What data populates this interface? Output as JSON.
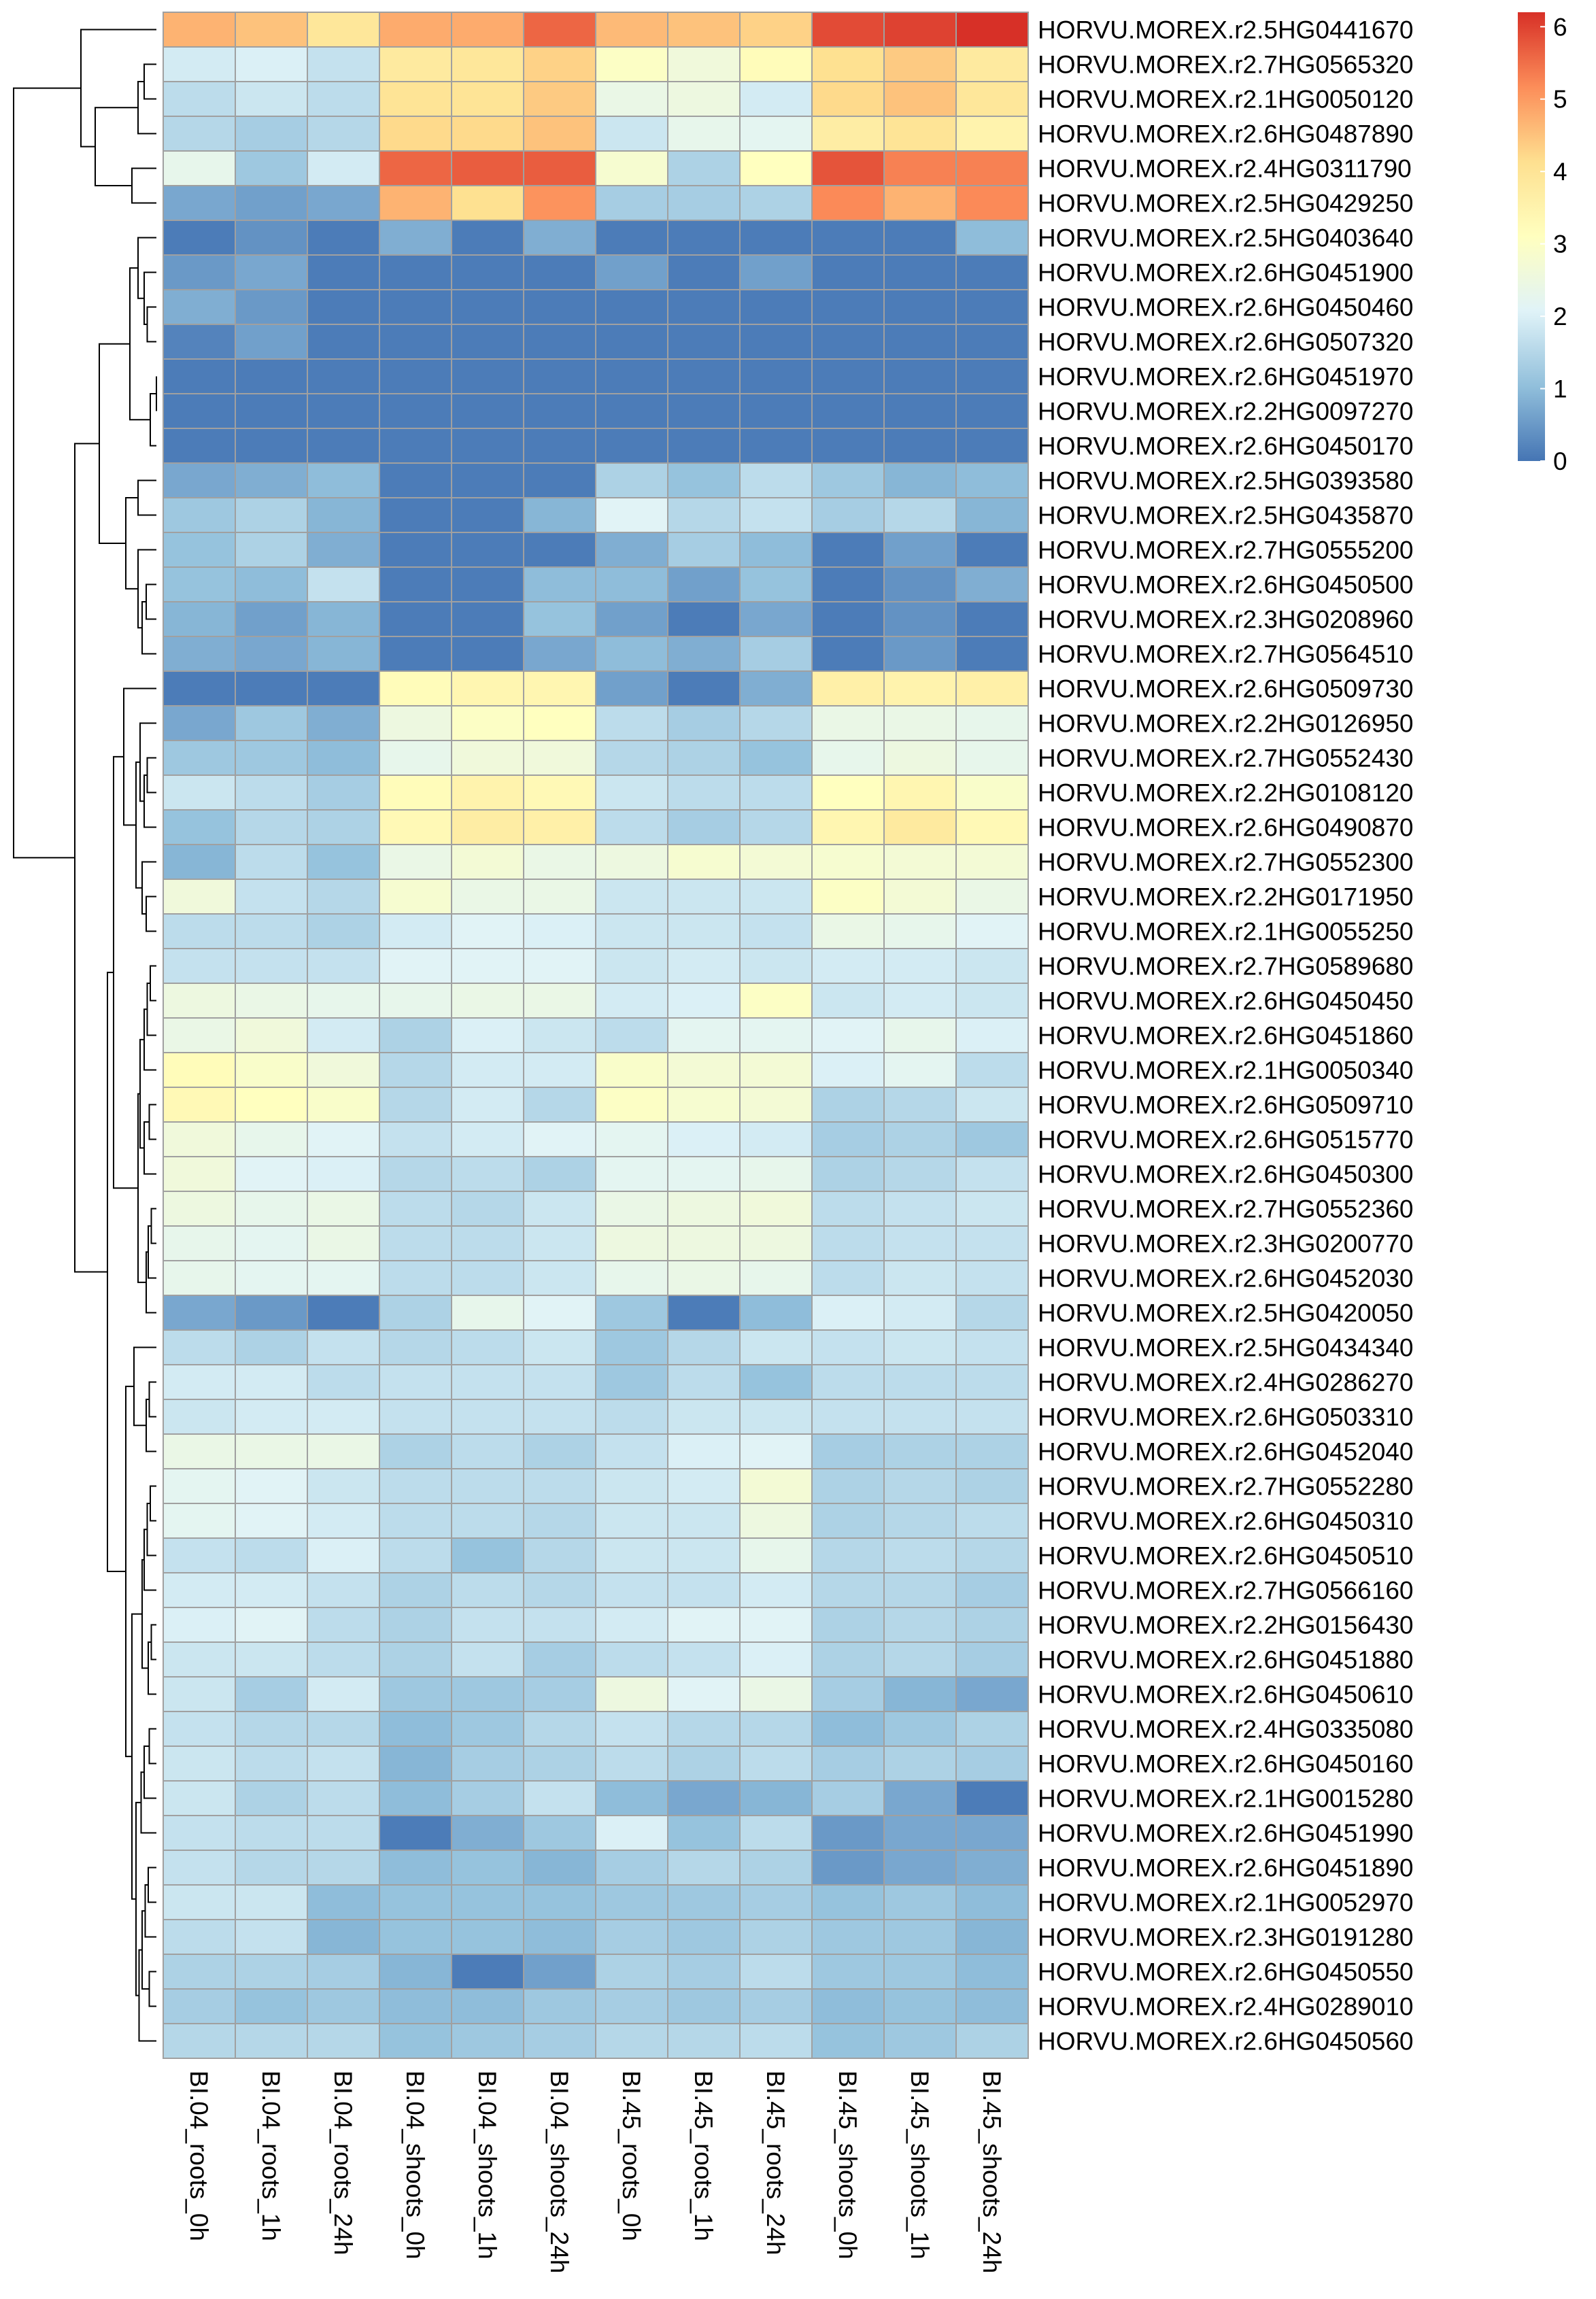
{
  "chart_data": {
    "type": "heatmap",
    "title": "",
    "xlabel": "",
    "ylabel": "",
    "columns": [
      "BI.04_roots_0h",
      "BI.04_roots_1h",
      "BI.04_roots_24h",
      "BI.04_shoots_0h",
      "BI.04_shoots_1h",
      "BI.04_shoots_24h",
      "BI.45_roots_0h",
      "BI.45_roots_1h",
      "BI.45_roots_24h",
      "BI.45_shoots_0h",
      "BI.45_shoots_1h",
      "BI.45_shoots_24h"
    ],
    "rows": [
      "HORVU.MOREX.r2.5HG0441670",
      "HORVU.MOREX.r2.7HG0565320",
      "HORVU.MOREX.r2.1HG0050120",
      "HORVU.MOREX.r2.6HG0487890",
      "HORVU.MOREX.r2.4HG0311790",
      "HORVU.MOREX.r2.5HG0429250",
      "HORVU.MOREX.r2.5HG0403640",
      "HORVU.MOREX.r2.6HG0451900",
      "HORVU.MOREX.r2.6HG0450460",
      "HORVU.MOREX.r2.6HG0507320",
      "HORVU.MOREX.r2.6HG0451970",
      "HORVU.MOREX.r2.2HG0097270",
      "HORVU.MOREX.r2.6HG0450170",
      "HORVU.MOREX.r2.5HG0393580",
      "HORVU.MOREX.r2.5HG0435870",
      "HORVU.MOREX.r2.7HG0555200",
      "HORVU.MOREX.r2.6HG0450500",
      "HORVU.MOREX.r2.3HG0208960",
      "HORVU.MOREX.r2.7HG0564510",
      "HORVU.MOREX.r2.6HG0509730",
      "HORVU.MOREX.r2.2HG0126950",
      "HORVU.MOREX.r2.7HG0552430",
      "HORVU.MOREX.r2.2HG0108120",
      "HORVU.MOREX.r2.6HG0490870",
      "HORVU.MOREX.r2.7HG0552300",
      "HORVU.MOREX.r2.2HG0171950",
      "HORVU.MOREX.r2.1HG0055250",
      "HORVU.MOREX.r2.7HG0589680",
      "HORVU.MOREX.r2.6HG0450450",
      "HORVU.MOREX.r2.6HG0451860",
      "HORVU.MOREX.r2.1HG0050340",
      "HORVU.MOREX.r2.6HG0509710",
      "HORVU.MOREX.r2.6HG0515770",
      "HORVU.MOREX.r2.6HG0450300",
      "HORVU.MOREX.r2.7HG0552360",
      "HORVU.MOREX.r2.3HG0200770",
      "HORVU.MOREX.r2.6HG0452030",
      "HORVU.MOREX.r2.5HG0420050",
      "HORVU.MOREX.r2.5HG0434340",
      "HORVU.MOREX.r2.4HG0286270",
      "HORVU.MOREX.r2.6HG0503310",
      "HORVU.MOREX.r2.6HG0452040",
      "HORVU.MOREX.r2.7HG0552280",
      "HORVU.MOREX.r2.6HG0450310",
      "HORVU.MOREX.r2.6HG0450510",
      "HORVU.MOREX.r2.7HG0566160",
      "HORVU.MOREX.r2.2HG0156430",
      "HORVU.MOREX.r2.6HG0451880",
      "HORVU.MOREX.r2.6HG0450610",
      "HORVU.MOREX.r2.4HG0335080",
      "HORVU.MOREX.r2.6HG0450160",
      "HORVU.MOREX.r2.1HG0015280",
      "HORVU.MOREX.r2.6HG0451990",
      "HORVU.MOREX.r2.6HG0451890",
      "HORVU.MOREX.r2.1HG0052970",
      "HORVU.MOREX.r2.3HG0191280",
      "HORVU.MOREX.r2.6HG0450550",
      "HORVU.MOREX.r2.4HG0289010",
      "HORVU.MOREX.r2.6HG0450560"
    ],
    "values": [
      [
        4.7,
        4.5,
        3.9,
        4.8,
        4.8,
        5.6,
        4.6,
        4.5,
        4.3,
        5.9,
        6.0,
        6.2
      ],
      [
        1.9,
        2.0,
        1.7,
        3.8,
        3.9,
        4.3,
        3.0,
        2.6,
        3.2,
        4.1,
        4.4,
        3.8
      ],
      [
        1.6,
        1.8,
        1.6,
        4.0,
        4.0,
        4.4,
        2.4,
        2.5,
        1.9,
        4.2,
        4.5,
        3.9
      ],
      [
        1.5,
        1.3,
        1.5,
        4.2,
        4.2,
        4.5,
        1.8,
        2.3,
        2.2,
        3.7,
        4.0,
        3.5
      ],
      [
        2.3,
        1.2,
        1.9,
        5.6,
        5.7,
        5.7,
        2.8,
        1.4,
        3.1,
        5.8,
        5.3,
        5.3
      ],
      [
        0.7,
        0.6,
        0.7,
        4.7,
        4.1,
        5.1,
        1.3,
        1.3,
        1.4,
        5.2,
        4.7,
        5.2
      ],
      [
        0.1,
        0.4,
        0.1,
        0.8,
        0.1,
        0.8,
        0.1,
        0.1,
        0.1,
        0.1,
        0.1,
        1.0
      ],
      [
        0.5,
        0.7,
        0.1,
        0.1,
        0.1,
        0.1,
        0.6,
        0.1,
        0.6,
        0.1,
        0.1,
        0.1
      ],
      [
        0.8,
        0.5,
        0.1,
        0.1,
        0.1,
        0.1,
        0.1,
        0.1,
        0.1,
        0.1,
        0.1,
        0.1
      ],
      [
        0.2,
        0.6,
        0.1,
        0.1,
        0.1,
        0.1,
        0.1,
        0.1,
        0.1,
        0.1,
        0.1,
        0.1
      ],
      [
        0.1,
        0.1,
        0.1,
        0.1,
        0.1,
        0.1,
        0.1,
        0.1,
        0.1,
        0.1,
        0.1,
        0.1
      ],
      [
        0.1,
        0.1,
        0.1,
        0.1,
        0.1,
        0.1,
        0.1,
        0.1,
        0.1,
        0.1,
        0.1,
        0.1
      ],
      [
        0.1,
        0.1,
        0.1,
        0.1,
        0.1,
        0.1,
        0.1,
        0.1,
        0.1,
        0.1,
        0.1,
        0.1
      ],
      [
        0.7,
        0.8,
        1.0,
        0.1,
        0.1,
        0.1,
        1.4,
        1.1,
        1.6,
        1.2,
        0.9,
        1.0
      ],
      [
        1.2,
        1.4,
        0.9,
        0.1,
        0.1,
        0.9,
        2.1,
        1.5,
        1.7,
        1.3,
        1.5,
        0.9
      ],
      [
        1.1,
        1.4,
        0.8,
        0.1,
        0.1,
        0.1,
        0.8,
        1.3,
        1.0,
        0.1,
        0.6,
        0.1
      ],
      [
        1.1,
        1.0,
        1.7,
        0.1,
        0.1,
        1.0,
        1.0,
        0.6,
        1.1,
        0.1,
        0.4,
        0.8
      ],
      [
        0.9,
        0.6,
        0.9,
        0.1,
        0.1,
        1.1,
        0.6,
        0.1,
        0.7,
        0.1,
        0.4,
        0.1
      ],
      [
        0.8,
        0.7,
        0.9,
        0.1,
        0.1,
        0.7,
        1.0,
        0.8,
        1.3,
        0.1,
        0.5,
        0.1
      ],
      [
        0.1,
        0.1,
        0.1,
        3.2,
        3.4,
        3.4,
        0.6,
        0.1,
        0.8,
        3.6,
        3.5,
        3.6
      ],
      [
        0.7,
        1.2,
        0.8,
        2.5,
        3.0,
        3.1,
        1.6,
        1.3,
        1.5,
        2.4,
        2.4,
        2.3
      ],
      [
        1.2,
        1.2,
        1.0,
        2.3,
        2.6,
        2.6,
        1.5,
        1.4,
        1.1,
        2.3,
        2.5,
        2.3
      ],
      [
        1.8,
        1.6,
        1.3,
        3.2,
        3.5,
        3.3,
        1.8,
        1.6,
        1.6,
        3.1,
        3.4,
        2.9
      ],
      [
        1.1,
        1.5,
        1.4,
        3.3,
        3.7,
        3.6,
        1.6,
        1.3,
        1.5,
        3.4,
        3.8,
        3.3
      ],
      [
        0.9,
        1.6,
        1.1,
        2.4,
        2.7,
        2.4,
        2.5,
        2.8,
        2.7,
        2.8,
        2.7,
        2.7
      ],
      [
        2.6,
        1.7,
        1.5,
        2.8,
        2.4,
        2.4,
        1.8,
        1.8,
        1.8,
        3.0,
        2.7,
        2.4
      ],
      [
        1.6,
        1.6,
        1.4,
        1.9,
        2.1,
        2.0,
        1.8,
        1.8,
        1.7,
        2.4,
        2.3,
        2.1
      ],
      [
        1.7,
        1.7,
        1.7,
        2.1,
        2.1,
        2.1,
        1.8,
        1.9,
        1.8,
        1.9,
        1.9,
        1.8
      ],
      [
        2.5,
        2.4,
        2.3,
        2.3,
        2.4,
        2.4,
        1.9,
        2.0,
        3.0,
        1.8,
        1.9,
        1.8
      ],
      [
        2.4,
        2.6,
        1.9,
        1.4,
        2.0,
        1.8,
        1.6,
        2.2,
        2.2,
        2.1,
        2.3,
        2.0
      ],
      [
        3.2,
        2.9,
        2.6,
        1.5,
        1.9,
        1.9,
        2.9,
        2.7,
        2.7,
        2.0,
        2.2,
        1.6
      ],
      [
        3.3,
        3.1,
        2.9,
        1.5,
        1.9,
        1.5,
        3.0,
        2.8,
        2.7,
        1.4,
        1.5,
        1.8
      ],
      [
        2.6,
        2.3,
        2.1,
        1.7,
        1.9,
        2.1,
        2.2,
        2.0,
        1.9,
        1.3,
        1.4,
        1.2
      ],
      [
        2.6,
        2.1,
        2.0,
        1.5,
        1.6,
        1.4,
        2.2,
        2.2,
        2.3,
        1.4,
        1.5,
        1.7
      ],
      [
        2.5,
        2.3,
        2.4,
        1.6,
        1.5,
        1.8,
        2.4,
        2.5,
        2.6,
        1.6,
        1.7,
        1.8
      ],
      [
        2.3,
        2.2,
        2.4,
        1.6,
        1.6,
        1.8,
        2.5,
        2.5,
        2.5,
        1.6,
        1.7,
        1.7
      ],
      [
        2.3,
        2.2,
        2.2,
        1.6,
        1.6,
        1.8,
        2.3,
        2.4,
        2.3,
        1.6,
        1.8,
        1.7
      ],
      [
        0.7,
        0.5,
        0.1,
        1.4,
        2.3,
        2.1,
        1.2,
        0.1,
        1.0,
        2.0,
        1.9,
        1.5
      ],
      [
        1.6,
        1.4,
        1.7,
        1.5,
        1.6,
        1.8,
        1.2,
        1.5,
        1.8,
        1.7,
        1.8,
        1.7
      ],
      [
        1.9,
        1.9,
        1.6,
        1.7,
        1.7,
        1.7,
        1.2,
        1.6,
        1.1,
        1.6,
        1.6,
        1.6
      ],
      [
        1.8,
        1.9,
        1.9,
        1.7,
        1.7,
        1.7,
        1.6,
        1.8,
        1.8,
        1.7,
        1.7,
        1.7
      ],
      [
        2.4,
        2.4,
        2.4,
        1.4,
        1.6,
        1.4,
        1.7,
        2.0,
        2.1,
        1.3,
        1.4,
        1.4
      ],
      [
        2.2,
        2.1,
        1.8,
        1.6,
        1.6,
        1.6,
        1.8,
        1.9,
        2.7,
        1.4,
        1.5,
        1.4
      ],
      [
        2.2,
        2.1,
        1.9,
        1.6,
        1.6,
        1.5,
        1.8,
        1.8,
        2.5,
        1.4,
        1.5,
        1.6
      ],
      [
        1.7,
        1.6,
        2.0,
        1.6,
        1.1,
        1.5,
        1.8,
        1.8,
        2.3,
        1.5,
        1.6,
        1.5
      ],
      [
        1.9,
        1.9,
        1.7,
        1.4,
        1.6,
        1.5,
        1.7,
        1.7,
        1.9,
        1.5,
        1.5,
        1.3
      ],
      [
        2.0,
        2.1,
        1.6,
        1.4,
        1.7,
        1.7,
        1.9,
        2.1,
        2.1,
        1.4,
        1.5,
        1.4
      ],
      [
        1.8,
        1.8,
        1.6,
        1.4,
        1.7,
        1.3,
        1.6,
        1.7,
        2.0,
        1.4,
        1.5,
        1.3
      ],
      [
        1.8,
        1.3,
        1.9,
        1.2,
        1.2,
        1.3,
        2.5,
        2.1,
        2.4,
        1.3,
        0.9,
        0.7
      ],
      [
        1.7,
        1.5,
        1.5,
        1.0,
        1.2,
        1.5,
        1.7,
        1.5,
        1.5,
        1.0,
        1.2,
        1.4
      ],
      [
        1.8,
        1.6,
        1.7,
        0.9,
        1.3,
        1.4,
        1.6,
        1.4,
        1.6,
        1.3,
        1.4,
        1.3
      ],
      [
        1.8,
        1.4,
        1.6,
        1.0,
        1.3,
        1.7,
        1.0,
        0.7,
        0.9,
        1.3,
        0.7,
        0.1
      ],
      [
        1.7,
        1.6,
        1.6,
        0.1,
        0.8,
        1.2,
        2.0,
        1.1,
        1.6,
        0.5,
        0.7,
        0.7
      ],
      [
        1.7,
        1.5,
        1.5,
        1.0,
        1.1,
        0.9,
        1.3,
        1.5,
        1.4,
        0.5,
        0.7,
        0.8
      ],
      [
        1.8,
        1.8,
        1.0,
        1.1,
        1.1,
        1.1,
        1.2,
        1.2,
        1.3,
        1.1,
        1.2,
        1.0
      ],
      [
        1.6,
        1.7,
        0.9,
        1.1,
        1.1,
        1.0,
        1.3,
        1.2,
        1.4,
        1.2,
        1.2,
        0.9
      ],
      [
        1.4,
        1.4,
        1.3,
        0.9,
        0.1,
        0.6,
        1.4,
        1.3,
        1.6,
        1.2,
        1.2,
        1.0
      ],
      [
        1.3,
        1.1,
        1.2,
        1.0,
        1.0,
        1.2,
        1.3,
        1.2,
        1.3,
        1.0,
        1.1,
        1.0
      ],
      [
        1.5,
        1.5,
        1.5,
        1.1,
        1.2,
        1.3,
        1.5,
        1.5,
        1.6,
        1.1,
        1.2,
        1.4
      ]
    ],
    "color_scale": {
      "min": 0,
      "max": 6.2,
      "stops": [
        {
          "v": 0,
          "color": "#4575b4"
        },
        {
          "v": 1.03,
          "color": "#91bfdb"
        },
        {
          "v": 2.07,
          "color": "#e0f3f8"
        },
        {
          "v": 3.1,
          "color": "#ffffbf"
        },
        {
          "v": 4.13,
          "color": "#fee090"
        },
        {
          "v": 5.17,
          "color": "#fc8d59"
        },
        {
          "v": 6.2,
          "color": "#d73027"
        }
      ],
      "ticks": [
        0,
        1,
        2,
        3,
        4,
        5,
        6
      ]
    },
    "row_dendrogram": {
      "merges": [
        [
          -11,
          -12,
          0.0
        ],
        [
          -13,
          1,
          0.3
        ],
        [
          -9,
          -10,
          0.45
        ],
        [
          -8,
          3,
          0.6
        ],
        [
          -7,
          4,
          0.9
        ],
        [
          2,
          5,
          1.3
        ],
        [
          -17,
          -18,
          0.5
        ],
        [
          -19,
          7,
          0.7
        ],
        [
          -16,
          8,
          0.9
        ],
        [
          -14,
          -15,
          0.9
        ],
        [
          9,
          10,
          1.5
        ],
        [
          6,
          11,
          2.8
        ],
        [
          -2,
          -3,
          0.6
        ],
        [
          -4,
          13,
          0.9
        ],
        [
          -5,
          -6,
          1.2
        ],
        [
          14,
          15,
          3.0
        ],
        [
          -1,
          16,
          3.7
        ],
        [
          -22,
          -23,
          0.45
        ],
        [
          -24,
          18,
          0.6
        ],
        [
          -21,
          19,
          0.8
        ],
        [
          -26,
          -27,
          0.5
        ],
        [
          -25,
          21,
          0.7
        ],
        [
          20,
          22,
          1.0
        ],
        [
          -20,
          23,
          1.6
        ],
        [
          -28,
          -29,
          0.3
        ],
        [
          -30,
          25,
          0.45
        ],
        [
          -31,
          26,
          0.6
        ],
        [
          -32,
          -33,
          0.35
        ],
        [
          -34,
          28,
          0.6
        ],
        [
          27,
          29,
          0.8
        ],
        [
          -35,
          -36,
          0.25
        ],
        [
          -37,
          31,
          0.4
        ],
        [
          -38,
          32,
          0.5
        ],
        [
          30,
          33,
          0.9
        ],
        [
          24,
          34,
          2.1
        ],
        [
          -40,
          -41,
          0.35
        ],
        [
          -42,
          36,
          0.5
        ],
        [
          -39,
          37,
          1.1
        ],
        [
          -43,
          -44,
          0.3
        ],
        [
          -45,
          39,
          0.45
        ],
        [
          -46,
          40,
          0.6
        ],
        [
          -47,
          -48,
          0.25
        ],
        [
          -49,
          42,
          0.4
        ],
        [
          41,
          43,
          0.7
        ],
        [
          -50,
          -51,
          0.35
        ],
        [
          -52,
          45,
          0.6
        ],
        [
          -53,
          46,
          0.75
        ],
        [
          -54,
          -55,
          0.4
        ],
        [
          -56,
          48,
          0.55
        ],
        [
          -57,
          -58,
          0.35
        ],
        [
          49,
          50,
          0.7
        ],
        [
          -59,
          51,
          0.85
        ],
        [
          47,
          52,
          1.0
        ],
        [
          44,
          53,
          1.2
        ],
        [
          38,
          54,
          1.5
        ],
        [
          35,
          55,
          2.4
        ],
        [
          12,
          56,
          4.0
        ],
        [
          17,
          57,
          7.0
        ]
      ]
    }
  }
}
